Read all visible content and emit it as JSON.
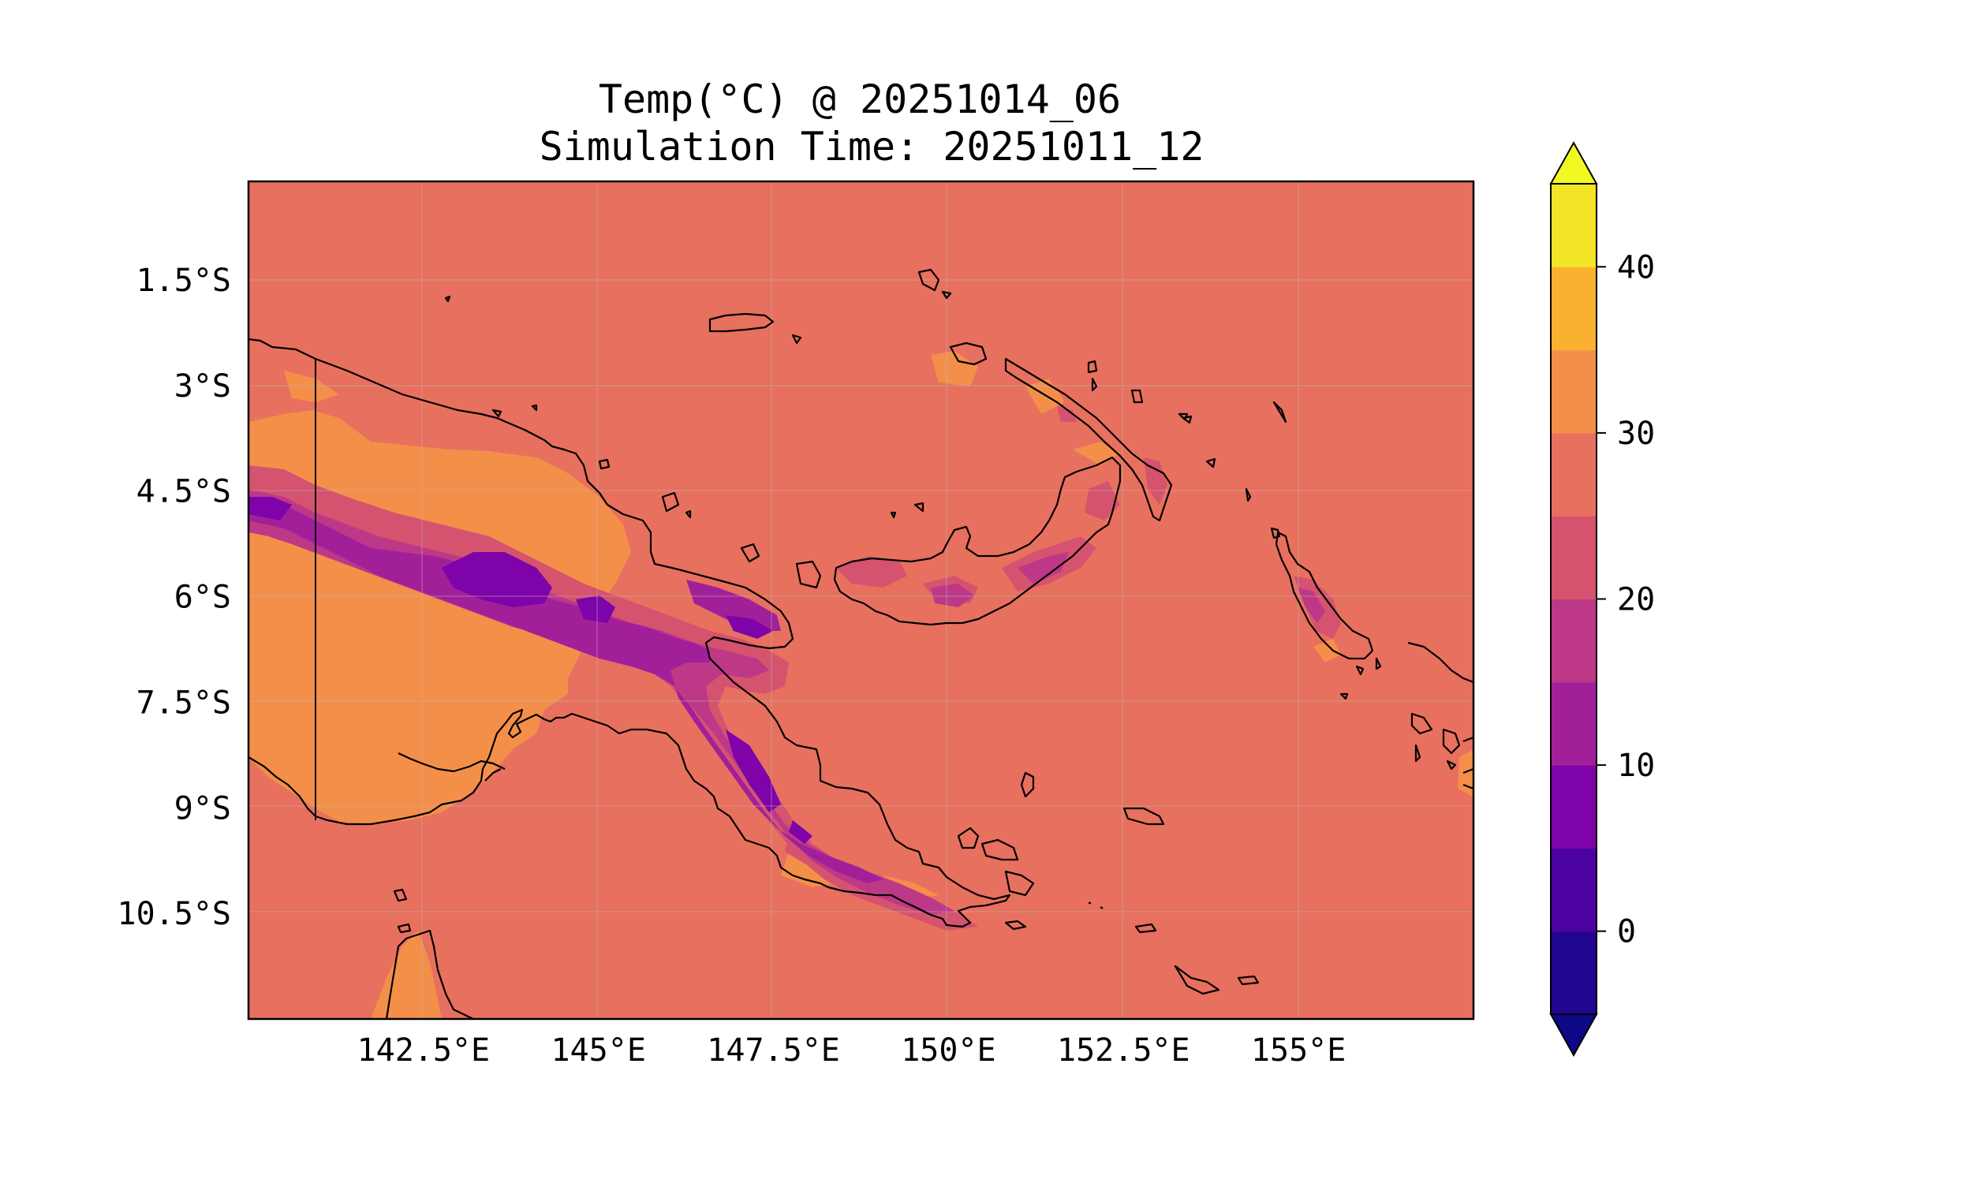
{
  "figure": {
    "title_line1": "Temp(°C) @ 20251014_06",
    "title_line2": "Simulation Time: 20251011_12"
  },
  "map": {
    "lon_range": [
      140.0,
      157.5
    ],
    "lat_range": [
      -12.0,
      -0.1
    ],
    "lat_ticks": [
      {
        "value": -1.5,
        "label": "1.5°S"
      },
      {
        "value": -3.0,
        "label": "3°S"
      },
      {
        "value": -4.5,
        "label": "4.5°S"
      },
      {
        "value": -6.0,
        "label": "6°S"
      },
      {
        "value": -7.5,
        "label": "7.5°S"
      },
      {
        "value": -9.0,
        "label": "9°S"
      },
      {
        "value": -10.5,
        "label": "10.5°S"
      }
    ],
    "lon_ticks": [
      {
        "value": 142.5,
        "label": "142.5°E"
      },
      {
        "value": 145.0,
        "label": "145°E"
      },
      {
        "value": 147.5,
        "label": "147.5°E"
      },
      {
        "value": 150.0,
        "label": "150°E"
      },
      {
        "value": 152.5,
        "label": "152.5°E"
      },
      {
        "value": 155.0,
        "label": "155°E"
      }
    ],
    "gridlines": true
  },
  "colorbar": {
    "extend": "both",
    "levels": [
      -5,
      0,
      5,
      10,
      15,
      20,
      25,
      30,
      35,
      40,
      45
    ],
    "tick_values": [
      0,
      10,
      20,
      30,
      40
    ],
    "tick_labels": [
      "0",
      "10",
      "20",
      "30",
      "40"
    ],
    "under_color": "#0d0887",
    "over_color": "#f0f921",
    "colors": [
      "#220690",
      "#4c02a1",
      "#7e03a8",
      "#a21f9a",
      "#be3888",
      "#d5536f",
      "#e8705e",
      "#f48f4a",
      "#fbb130",
      "#f4e427"
    ]
  }
}
